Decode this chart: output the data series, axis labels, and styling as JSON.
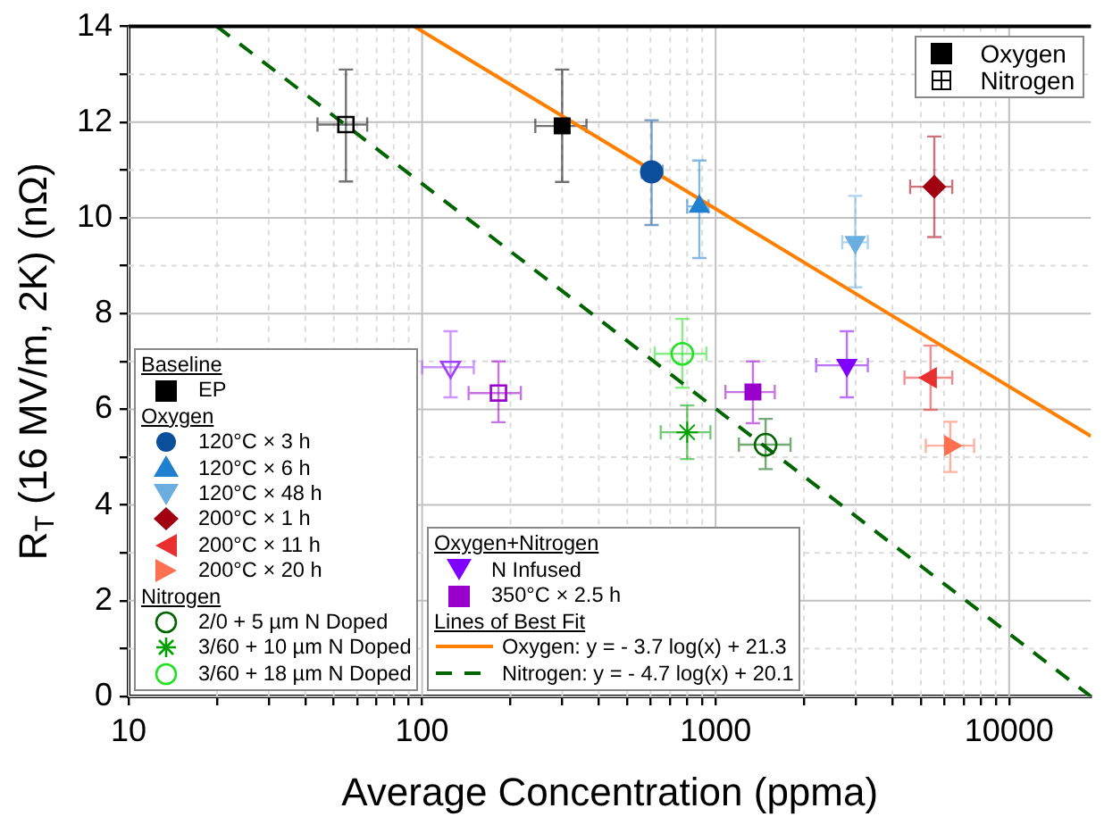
{
  "chart_data": {
    "type": "scatter",
    "xlabel": "Average Concentration (ppma)",
    "ylabel": "R$_{T}$ (16 MV/m, 2K) (nΩ)",
    "log": "x",
    "grid": true,
    "legend": "bottom left",
    "xlim": [
      10,
      19000
    ],
    "xticks": [
      10,
      {
        "value": 20,
        "label": null
      },
      {
        "value": 30,
        "label": null
      },
      {
        "value": 40,
        "label": null
      },
      {
        "value": 50,
        "label": null
      },
      {
        "value": 60,
        "label": null
      },
      {
        "value": 70,
        "label": null
      },
      {
        "value": 80,
        "label": null
      },
      {
        "value": 90,
        "label": null
      },
      100,
      {
        "value": 200,
        "label": null
      },
      {
        "value": 300,
        "label": null
      },
      {
        "value": 400,
        "label": null
      },
      {
        "value": 500,
        "label": null
      },
      {
        "value": 600,
        "label": null
      },
      {
        "value": 700,
        "label": null
      },
      {
        "value": 800,
        "label": null
      },
      {
        "value": 900,
        "label": null
      },
      1000,
      {
        "value": 2000,
        "label": null
      },
      {
        "value": 3000,
        "label": null
      },
      {
        "value": 4000,
        "label": null
      },
      {
        "value": 5000,
        "label": null
      },
      {
        "value": 6000,
        "label": null
      },
      {
        "value": 7000,
        "label": null
      },
      {
        "value": 8000,
        "label": null
      },
      {
        "value": 9000,
        "label": null
      },
      10000
    ],
    "ylim": [
      0,
      14
    ],
    "yticks": [
      0,
      {
        "value": 1,
        "label": null
      },
      2,
      {
        "value": 3,
        "label": null
      },
      4,
      {
        "value": 5,
        "label": null
      },
      6,
      {
        "value": 7,
        "label": null
      },
      8,
      {
        "value": 9,
        "label": null
      },
      10,
      {
        "value": 11,
        "label": null
      },
      12,
      {
        "value": 13,
        "label": null
      },
      14
    ],
    "annotations": [
      "Baseline",
      "Oxygen",
      "Nitrogen",
      "Oxygen+Nitrogen",
      "Lines of Best Fit",
      "Oxygen",
      "Nitrogen"
    ],
    "series": [
      {
        "name": "EP",
        "color": "#000000",
        "marker": "square",
        "x": [
          300
        ],
        "values": [
          11.92
        ],
        "errors": [
          [
            10.75,
            13.1
          ]
        ],
        "xerrors": [
          [
            243,
            363
          ]
        ]
      },
      {
        "color": "#000000",
        "marker": "square-open",
        "x": [
          55
        ],
        "values": [
          11.95
        ],
        "errors": [
          [
            10.76,
            13.1
          ]
        ],
        "xerrors": [
          [
            44,
            65
          ]
        ]
      },
      {
        "name": "120°C × 3 h",
        "color": "#0b4f9c",
        "marker": "circle",
        "x": [
          605
        ],
        "values": [
          10.96
        ],
        "errors": [
          [
            9.85,
            12.04
          ]
        ],
        "xerrors": [
          [
            560,
            660
          ]
        ]
      },
      {
        "name": "120°C × 6 h",
        "color": "#1f80d0",
        "marker": "triangle",
        "x": [
          880
        ],
        "values": [
          10.24
        ],
        "errors": [
          [
            9.16,
            11.2
          ]
        ],
        "xerrors": [
          [
            800,
            946
          ]
        ]
      },
      {
        "name": "120°C × 48 h",
        "color": "#6aaee0",
        "marker": "triangle-down",
        "x": [
          2990
        ],
        "values": [
          9.49
        ],
        "errors": [
          [
            8.55,
            10.46
          ]
        ],
        "xerrors": [
          [
            2700,
            3300
          ]
        ]
      },
      {
        "name": "200°C × 1 h",
        "color": "#a00010",
        "marker": "diamond",
        "x": [
          5560
        ],
        "values": [
          10.65
        ],
        "errors": [
          [
            9.6,
            11.7
          ]
        ],
        "xerrors": [
          [
            4600,
            6400
          ]
        ]
      },
      {
        "name": "200°C × 11 h",
        "color": "#e83030",
        "marker": "triangle-left",
        "x": [
          5400
        ],
        "values": [
          6.66
        ],
        "errors": [
          [
            5.99,
            7.33
          ]
        ],
        "xerrors": [
          [
            4400,
            6400
          ]
        ]
      },
      {
        "name": "200°C × 20 h",
        "color": "#ff7050",
        "marker": "triangle-right",
        "x": [
          6300
        ],
        "values": [
          5.24
        ],
        "errors": [
          [
            4.69,
            5.74
          ]
        ],
        "xerrors": [
          [
            5200,
            7600
          ]
        ]
      },
      {
        "name": "2/0 + 5 µm N Doped",
        "color": "#006400",
        "marker": "circle-open",
        "x": [
          1480
        ],
        "values": [
          5.26
        ],
        "errors": [
          [
            4.75,
            5.8
          ]
        ],
        "xerrors": [
          [
            1200,
            1800
          ]
        ]
      },
      {
        "name": "3/60 + 10 µm N Doped",
        "color": "#00a000",
        "marker": "cross",
        "x": [
          800
        ],
        "values": [
          5.52
        ],
        "errors": [
          [
            4.96,
            6.08
          ]
        ],
        "xerrors": [
          [
            650,
            960
          ]
        ]
      },
      {
        "name": "3/60 + 18 µm N Doped",
        "color": "#22e022",
        "marker": "circle-open",
        "x": [
          770
        ],
        "values": [
          7.16
        ],
        "errors": [
          [
            6.45,
            7.89
          ]
        ],
        "xerrors": [
          [
            620,
            930
          ]
        ]
      },
      {
        "name": "N Infused",
        "color": "#8000ff",
        "marker": "triangle-down",
        "x": [
          2800
        ],
        "values": [
          6.92
        ],
        "errors": [
          [
            6.25,
            7.63
          ]
        ],
        "xerrors": [
          [
            2200,
            3300
          ]
        ]
      },
      {
        "color": "#a040ff",
        "marker": "triangle-down-open",
        "x": [
          125
        ],
        "values": [
          6.88
        ],
        "errors": [
          [
            6.25,
            7.63
          ]
        ],
        "xerrors": [
          [
            100,
            150
          ]
        ]
      },
      {
        "name": "350°C × 2.5 h",
        "color": "#9900cc",
        "marker": "square",
        "x": [
          1340
        ],
        "values": [
          6.36
        ],
        "errors": [
          [
            5.71,
            7.0
          ]
        ],
        "xerrors": [
          [
            1080,
            1590
          ]
        ]
      },
      {
        "color": "#9900cc",
        "marker": "square-open",
        "x": [
          182
        ],
        "values": [
          6.34
        ],
        "errors": [
          [
            5.73,
            7.0
          ]
        ],
        "xerrors": [
          [
            144,
            217
          ]
        ]
      },
      {
        "name": "Oxygen:  y = - 3.7 log(x) + 21.3",
        "type": "line",
        "color": "#ff8000",
        "marker": "none",
        "line_style": "solid",
        "x": [
          94,
          19000
        ],
        "values": [
          14,
          5.44
        ]
      },
      {
        "name": "Nitrogen: y = - 4.7 log(x) + 20.1",
        "type": "line",
        "color": "#006400",
        "marker": "none",
        "line_style": "dashed",
        "x": [
          20,
          19000
        ],
        "values": [
          14,
          0
        ]
      }
    ]
  }
}
